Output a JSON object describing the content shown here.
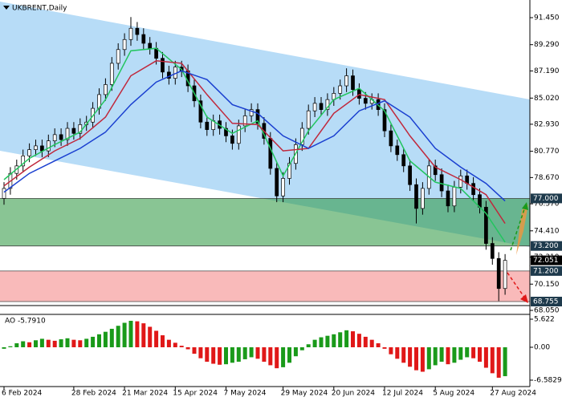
{
  "chart_data": {
    "type": "candlestick",
    "title": "UKBRENT,Daily",
    "categories": [
      "6 Feb 2024",
      null,
      null,
      null,
      null,
      null,
      null,
      null,
      null,
      null,
      null,
      "28 Feb 2024",
      null,
      null,
      null,
      null,
      null,
      null,
      null,
      "21 Mar 2024",
      null,
      null,
      null,
      null,
      null,
      null,
      null,
      "15 Apr 2024",
      null,
      null,
      null,
      null,
      null,
      null,
      null,
      "7 May 2024",
      null,
      null,
      null,
      null,
      null,
      null,
      null,
      null,
      "29 May 2024",
      null,
      null,
      null,
      null,
      null,
      null,
      null,
      "20 Jun 2024",
      null,
      null,
      null,
      null,
      null,
      null,
      null,
      "12 Jul 2024",
      null,
      null,
      null,
      null,
      null,
      null,
      null,
      "5 Aug 2024",
      null,
      null,
      null,
      null,
      null,
      null,
      null,
      null,
      "27 Aug 2024",
      null,
      null
    ],
    "open": [
      77.0,
      77.8,
      79.0,
      79.6,
      80.4,
      80.9,
      81.2,
      80.8,
      81.6,
      82.1,
      81.7,
      82.6,
      82.2,
      82.9,
      83.1,
      84.2,
      85.3,
      86.1,
      87.8,
      88.9,
      89.7,
      90.6,
      90.1,
      89.4,
      89.0,
      88.2,
      87.1,
      86.6,
      87.5,
      87.2,
      86.0,
      84.8,
      83.1,
      82.5,
      83.2,
      82.6,
      82.0,
      81.4,
      82.8,
      83.6,
      84.1,
      83.0,
      81.8,
      79.4,
      77.2,
      78.6,
      79.8,
      81.3,
      82.6,
      84.0,
      84.6,
      84.1,
      84.9,
      85.4,
      86.0,
      86.8,
      85.7,
      85.0,
      84.6,
      84.9,
      84.1,
      82.4,
      81.2,
      80.5,
      79.6,
      78.1,
      76.2,
      77.8,
      79.6,
      78.9,
      77.6,
      76.4,
      77.9,
      78.8,
      78.2,
      77.3,
      76.3,
      73.4,
      72.2,
      69.8
    ],
    "high": [
      78.3,
      79.5,
      80.1,
      80.9,
      81.4,
      81.7,
      81.7,
      82.1,
      82.6,
      82.6,
      83.1,
      83.1,
      83.4,
      83.6,
      84.7,
      85.8,
      86.6,
      88.3,
      89.4,
      90.2,
      91.5,
      91.1,
      90.6,
      89.9,
      89.5,
      88.7,
      87.6,
      88.0,
      88.0,
      87.7,
      86.5,
      85.3,
      83.6,
      83.7,
      83.7,
      83.1,
      82.5,
      83.3,
      84.1,
      84.6,
      84.6,
      83.5,
      82.3,
      79.9,
      79.1,
      80.3,
      81.8,
      83.1,
      84.5,
      85.1,
      85.1,
      85.4,
      85.9,
      86.5,
      87.4,
      87.3,
      86.2,
      85.5,
      85.4,
      85.4,
      84.6,
      82.9,
      81.7,
      81.0,
      80.1,
      78.6,
      78.3,
      80.1,
      80.1,
      79.4,
      78.1,
      78.4,
      79.3,
      79.3,
      78.7,
      77.8,
      76.8,
      73.9,
      72.7,
      72.55
    ],
    "low": [
      76.5,
      77.3,
      78.5,
      79.1,
      79.9,
      80.4,
      80.3,
      80.3,
      81.1,
      81.2,
      81.2,
      81.7,
      81.7,
      82.4,
      82.6,
      83.7,
      84.8,
      85.6,
      87.3,
      88.4,
      89.2,
      89.6,
      88.9,
      88.5,
      87.7,
      86.6,
      86.1,
      86.1,
      86.7,
      85.5,
      84.3,
      82.6,
      82.0,
      82.0,
      82.1,
      81.5,
      80.9,
      80.9,
      82.3,
      83.1,
      82.5,
      81.3,
      78.9,
      76.7,
      76.7,
      78.1,
      79.3,
      80.8,
      82.1,
      83.5,
      83.6,
      83.6,
      84.4,
      84.9,
      85.5,
      85.2,
      84.5,
      84.1,
      84.1,
      83.6,
      81.9,
      80.7,
      80.0,
      79.1,
      77.6,
      75.0,
      75.7,
      77.3,
      78.4,
      77.1,
      75.9,
      75.9,
      77.4,
      77.7,
      76.8,
      75.8,
      72.9,
      71.7,
      68.8,
      69.3
    ],
    "close": [
      77.8,
      79.0,
      79.6,
      80.4,
      80.9,
      81.2,
      80.8,
      81.6,
      82.1,
      81.7,
      82.6,
      82.2,
      82.9,
      83.1,
      84.2,
      85.3,
      86.1,
      87.8,
      88.9,
      89.7,
      90.6,
      90.1,
      89.4,
      89.0,
      88.2,
      87.1,
      86.6,
      87.5,
      87.2,
      86.0,
      84.8,
      83.1,
      82.5,
      83.2,
      82.6,
      82.0,
      81.4,
      82.8,
      83.6,
      84.1,
      83.0,
      81.8,
      79.4,
      77.2,
      78.6,
      79.8,
      81.3,
      82.6,
      84.0,
      84.6,
      84.1,
      84.9,
      85.4,
      86.0,
      86.8,
      85.7,
      85.0,
      84.6,
      84.9,
      84.1,
      82.4,
      81.2,
      80.5,
      79.6,
      78.1,
      76.2,
      77.8,
      79.6,
      78.9,
      77.6,
      76.4,
      77.9,
      78.8,
      78.2,
      77.3,
      76.3,
      73.4,
      72.2,
      69.8,
      72.05
    ],
    "up_color": "#ffffff",
    "down_color": "#000000",
    "line_x": [
      0,
      4,
      8,
      12,
      16,
      20,
      24,
      28,
      32,
      36,
      40,
      44,
      48,
      52,
      56,
      60,
      64,
      68,
      72,
      76,
      79
    ],
    "lines": [
      {
        "color": "#22c55e",
        "values": [
          78.5,
          80.2,
          81.3,
          82.3,
          84.9,
          88.8,
          89.0,
          87.3,
          83.5,
          82.2,
          83.2,
          78.8,
          82.4,
          84.9,
          85.8,
          84.0,
          80.0,
          78.3,
          77.8,
          75.8,
          73.5
        ]
      },
      {
        "color": "#c0283c",
        "values": [
          78.0,
          79.5,
          80.8,
          81.8,
          83.5,
          86.8,
          88.0,
          87.8,
          85.3,
          83.0,
          82.9,
          80.8,
          81.0,
          83.8,
          85.3,
          84.9,
          82.0,
          79.5,
          78.5,
          77.3,
          75.0
        ]
      },
      {
        "color": "#1a3fd0",
        "values": [
          77.5,
          79.0,
          80.0,
          81.0,
          82.3,
          84.5,
          86.3,
          87.2,
          86.5,
          84.5,
          83.8,
          82.0,
          81.0,
          82.0,
          84.0,
          84.8,
          83.5,
          81.0,
          79.5,
          78.2,
          76.8
        ]
      }
    ],
    "ylim": [
      68.5,
      92.86
    ],
    "yticks": [
      {
        "value": 91.45,
        "label": "91.450"
      },
      {
        "value": 89.29,
        "label": "89.290"
      },
      {
        "value": 87.19,
        "label": "87.190"
      },
      {
        "value": 85.02,
        "label": "85.020"
      },
      {
        "value": 82.93,
        "label": "82.930"
      },
      {
        "value": 80.77,
        "label": "80.770"
      },
      {
        "value": 78.67,
        "label": "78.670"
      },
      {
        "value": 76.57,
        "label": "76.570"
      },
      {
        "value": 74.41,
        "label": "74.410"
      },
      {
        "value": 72.31,
        "label": "72.310"
      },
      {
        "value": 70.15,
        "label": "70.150"
      },
      {
        "value": 68.05,
        "label": "68.050"
      }
    ],
    "zones": [
      {
        "top": {
          "value": 77.0,
          "label": "77.000"
        },
        "bottom": {
          "value": 73.2,
          "label": "73.200"
        },
        "color": "rgba(40,150,60,0.55)"
      },
      {
        "top": {
          "value": 71.2,
          "label": "71.200"
        },
        "bottom": {
          "value": 68.755,
          "label": "68.755"
        },
        "color": "rgba(245,140,140,0.6)"
      }
    ],
    "price_marker": {
      "value": 72.051,
      "label": "72.051"
    },
    "ao": {
      "title": "AO -5.7910",
      "up_color": "#1a9a1a",
      "down_color": "#e01818",
      "values": [
        -0.3,
        0.2,
        0.8,
        1.2,
        1.0,
        1.4,
        1.7,
        1.5,
        1.3,
        1.6,
        1.8,
        1.5,
        1.4,
        1.7,
        2.1,
        2.6,
        3.1,
        3.7,
        4.3,
        4.9,
        5.3,
        5.2,
        4.8,
        4.1,
        3.3,
        2.4,
        1.5,
        0.9,
        0.3,
        -0.4,
        -1.3,
        -2.2,
        -2.9,
        -3.3,
        -3.5,
        -3.4,
        -3.1,
        -2.9,
        -2.4,
        -2.0,
        -2.3,
        -2.9,
        -3.6,
        -4.2,
        -4.0,
        -3.1,
        -1.8,
        -0.6,
        0.6,
        1.5,
        2.0,
        2.3,
        2.6,
        3.0,
        3.4,
        3.2,
        2.7,
        2.1,
        1.5,
        0.8,
        -0.3,
        -1.4,
        -2.3,
        -3.1,
        -3.9,
        -4.6,
        -4.9,
        -4.4,
        -3.6,
        -2.9,
        -3.4,
        -3.1,
        -2.5,
        -2.0,
        -2.2,
        -2.9,
        -4.1,
        -5.2,
        -6.1,
        -5.791
      ],
      "ylim": [
        -7.87,
        6.585
      ],
      "yticks": [
        5.622,
        {
          "value": 0,
          "label": "0.00"
        },
        -6.5829
      ]
    }
  }
}
